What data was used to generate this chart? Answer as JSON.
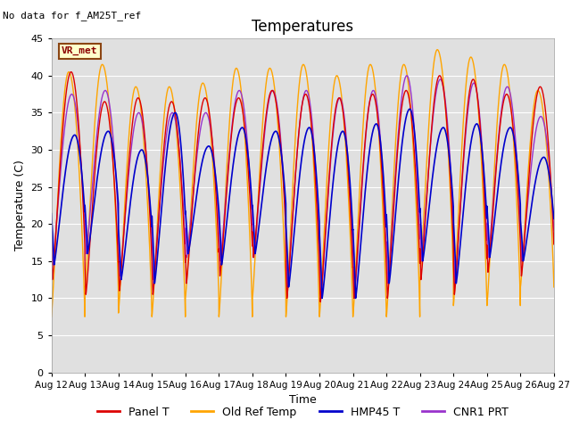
{
  "title": "Temperatures",
  "xlabel": "Time",
  "ylabel": "Temperature (C)",
  "xlim": [
    0,
    15
  ],
  "ylim": [
    0,
    45
  ],
  "yticks": [
    0,
    5,
    10,
    15,
    20,
    25,
    30,
    35,
    40,
    45
  ],
  "xtick_labels": [
    "Aug 12",
    "Aug 13",
    "Aug 14",
    "Aug 15",
    "Aug 16",
    "Aug 17",
    "Aug 18",
    "Aug 19",
    "Aug 20",
    "Aug 21",
    "Aug 22",
    "Aug 23",
    "Aug 24",
    "Aug 25",
    "Aug 26",
    "Aug 27"
  ],
  "note_text": "No data for f_AM25T_ref",
  "legend_box_label": "VR_met",
  "legend_box_bg": "#FFFFCC",
  "legend_box_edge": "#8B0000",
  "bg_color": "#E0E0E0",
  "grid_color": "#FFFFFF",
  "lines": {
    "panel_t": {
      "label": "Panel T",
      "color": "#DD0000",
      "lw": 1.0
    },
    "old_ref": {
      "label": "Old Ref Temp",
      "color": "#FFA500",
      "lw": 1.0
    },
    "hmp45": {
      "label": "HMP45 T",
      "color": "#0000CC",
      "lw": 1.2
    },
    "cnr1": {
      "label": "CNR1 PRT",
      "color": "#9933CC",
      "lw": 1.0
    }
  },
  "cycles": 15,
  "panel_t_max": [
    40.5,
    36.5,
    37.0,
    36.5,
    37.0,
    37.0,
    38.0,
    37.5,
    37.0,
    37.5,
    38.0,
    40.0,
    39.5,
    37.5,
    38.5
  ],
  "panel_t_min": [
    12.5,
    10.5,
    11.0,
    10.5,
    12.0,
    13.0,
    15.5,
    10.0,
    9.5,
    10.0,
    10.0,
    12.5,
    10.5,
    13.5,
    13.0
  ],
  "old_ref_max": [
    40.5,
    41.5,
    38.5,
    38.5,
    39.0,
    41.0,
    41.0,
    41.5,
    40.0,
    41.5,
    41.5,
    43.5,
    42.5,
    41.5,
    38.0
  ],
  "old_ref_min": [
    7.5,
    11.0,
    8.0,
    7.5,
    10.0,
    7.5,
    10.0,
    7.5,
    7.5,
    7.5,
    7.5,
    12.5,
    9.0,
    9.0,
    11.5
  ],
  "hmp45_max": [
    32.0,
    32.5,
    30.0,
    35.0,
    30.5,
    33.0,
    32.5,
    33.0,
    32.5,
    33.5,
    35.5,
    33.0,
    33.5,
    33.0,
    29.0
  ],
  "hmp45_min": [
    14.5,
    16.0,
    12.5,
    12.0,
    16.0,
    14.5,
    16.0,
    11.5,
    10.0,
    10.0,
    12.0,
    15.0,
    12.0,
    15.5,
    15.0
  ],
  "cnr1_max": [
    37.5,
    38.0,
    35.0,
    35.0,
    35.0,
    38.0,
    38.0,
    38.0,
    37.0,
    38.0,
    40.0,
    39.5,
    39.0,
    38.5,
    34.5
  ],
  "cnr1_min": [
    14.5,
    16.0,
    13.0,
    12.5,
    15.5,
    15.0,
    15.5,
    11.5,
    10.0,
    10.0,
    12.0,
    15.0,
    12.0,
    15.5,
    15.0
  ],
  "figsize": [
    6.4,
    4.8
  ],
  "dpi": 100
}
